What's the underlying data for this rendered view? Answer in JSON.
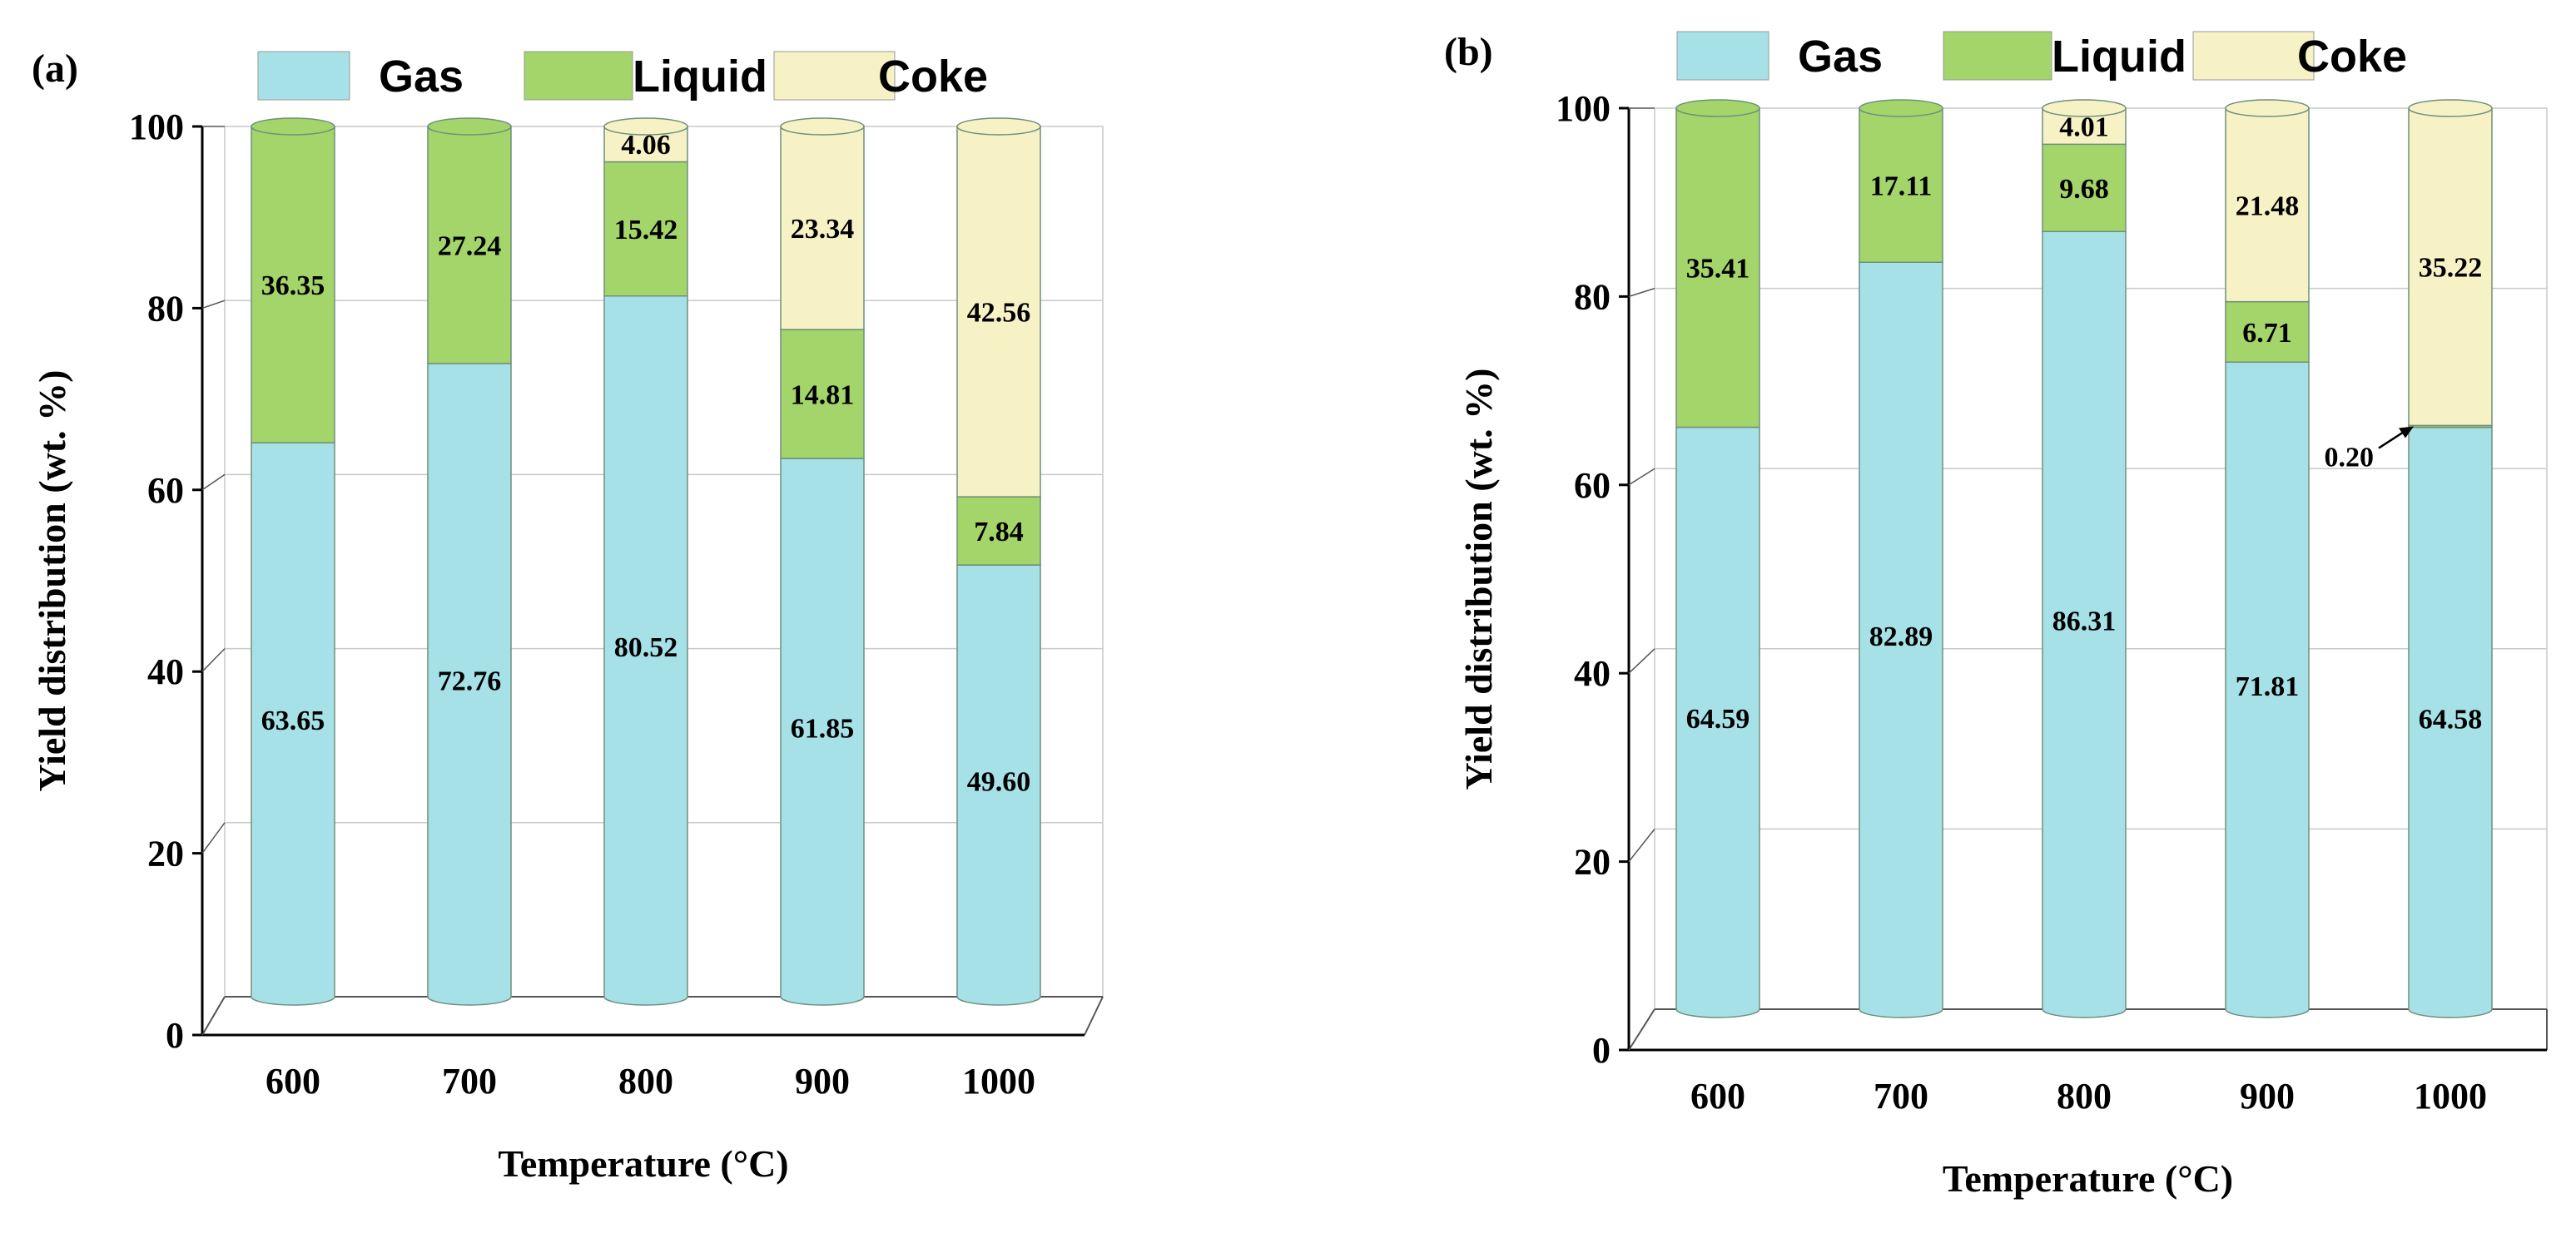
{
  "chart_data": [
    {
      "type": "bar",
      "panel_label": "(a)",
      "categories": [
        "600",
        "700",
        "800",
        "900",
        "1000"
      ],
      "xlabel": "Temperature (°C)",
      "ylabel": "Yield distribution (wt. %)",
      "ylim": [
        0,
        100
      ],
      "yticks": [
        "0",
        "20",
        "40",
        "60",
        "80",
        "100"
      ],
      "grid": true,
      "legend_position": "top",
      "series": [
        {
          "name": "Gas",
          "color": "#a6e1e8",
          "values": [
            63.65,
            72.76,
            80.52,
            61.85,
            49.6
          ],
          "labels": [
            "63.65",
            "72.76",
            "80.52",
            "61.85",
            "49.60"
          ]
        },
        {
          "name": "Liquid",
          "color": "#a3d56b",
          "values": [
            36.35,
            27.24,
            15.42,
            14.81,
            7.84
          ],
          "labels": [
            "36.35",
            "27.24",
            "15.42",
            "14.81",
            "7.84"
          ]
        },
        {
          "name": "Coke",
          "color": "#f7f2c6",
          "values": [
            0,
            0,
            4.06,
            23.34,
            42.56
          ],
          "labels": [
            "",
            "",
            "4.06",
            "23.34",
            "42.56"
          ]
        }
      ],
      "annotations": []
    },
    {
      "type": "bar",
      "panel_label": "(b)",
      "categories": [
        "600",
        "700",
        "800",
        "900",
        "1000"
      ],
      "xlabel": "Temperature (°C)",
      "ylabel": "Yield distribution (wt. %)",
      "ylim": [
        0,
        100
      ],
      "yticks": [
        "0",
        "20",
        "40",
        "60",
        "80",
        "100"
      ],
      "grid": true,
      "legend_position": "top",
      "series": [
        {
          "name": "Gas",
          "color": "#a6e1e8",
          "values": [
            64.59,
            82.89,
            86.31,
            71.81,
            64.58
          ],
          "labels": [
            "64.59",
            "82.89",
            "86.31",
            "71.81",
            "64.58"
          ]
        },
        {
          "name": "Liquid",
          "color": "#a3d56b",
          "values": [
            35.41,
            17.11,
            9.68,
            6.71,
            0.2
          ],
          "labels": [
            "35.41",
            "17.11",
            "9.68",
            "6.71",
            ""
          ]
        },
        {
          "name": "Coke",
          "color": "#f7f2c6",
          "values": [
            0,
            0,
            4.01,
            21.48,
            35.22
          ],
          "labels": [
            "",
            "",
            "4.01",
            "21.48",
            "35.22"
          ]
        }
      ],
      "annotations": [
        {
          "text": "0.20",
          "category": "1000",
          "series": "Liquid"
        }
      ]
    }
  ]
}
